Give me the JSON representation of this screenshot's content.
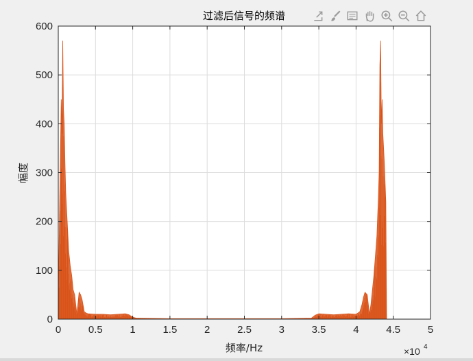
{
  "toolbar": {
    "items": [
      {
        "icon": "export-icon",
        "label": "Export"
      },
      {
        "icon": "brush-icon",
        "label": "Brush"
      },
      {
        "icon": "data-tips-icon",
        "label": "Data Tips"
      },
      {
        "icon": "pan-hand-icon",
        "label": "Pan"
      },
      {
        "icon": "zoom-in-icon",
        "label": "Zoom In"
      },
      {
        "icon": "zoom-out-icon",
        "label": "Zoom Out"
      },
      {
        "icon": "home-icon",
        "label": "Restore View"
      }
    ]
  },
  "chart_data": {
    "type": "line",
    "title": "过滤后信号的频谱",
    "xlabel": "频率/Hz",
    "ylabel": "幅度",
    "x_exponent_label": "×10",
    "x_exponent_power": "4",
    "xlim": [
      0,
      5
    ],
    "ylim": [
      0,
      600
    ],
    "xticks": [
      0,
      0.5,
      1,
      1.5,
      2,
      2.5,
      3,
      3.5,
      4,
      4.5,
      5
    ],
    "xtick_labels": [
      "0",
      "0.5",
      "1",
      "1.5",
      "2",
      "2.5",
      "3",
      "3.5",
      "4",
      "4.5",
      "5"
    ],
    "yticks": [
      0,
      100,
      200,
      300,
      400,
      500,
      600
    ],
    "ytick_labels": [
      "0",
      "100",
      "200",
      "300",
      "400",
      "500",
      "600"
    ],
    "grid": true,
    "series": [
      {
        "color": "#d95319",
        "x": [
          0.0,
          0.02,
          0.04,
          0.05,
          0.06,
          0.07,
          0.08,
          0.09,
          0.1,
          0.12,
          0.14,
          0.16,
          0.18,
          0.2,
          0.22,
          0.25,
          0.28,
          0.3,
          0.32,
          0.35,
          0.38,
          0.4,
          0.5,
          0.6,
          0.7,
          0.8,
          0.9,
          0.95,
          1.0,
          1.05,
          1.5,
          2.0,
          2.5,
          3.0,
          3.4,
          3.45,
          3.5,
          3.6,
          3.7,
          3.8,
          3.9,
          4.0,
          4.05,
          4.08,
          4.1,
          4.12,
          4.15,
          4.18,
          4.2,
          4.22,
          4.24,
          4.26,
          4.28,
          4.3,
          4.31,
          4.32,
          4.33,
          4.34,
          4.35,
          4.36,
          4.38,
          4.4,
          4.41
        ],
        "y": [
          30,
          250,
          450,
          380,
          570,
          430,
          400,
          320,
          260,
          200,
          140,
          110,
          90,
          60,
          50,
          10,
          55,
          50,
          40,
          15,
          12,
          11,
          10,
          10,
          9,
          10,
          11,
          9,
          4,
          2,
          1,
          1,
          1,
          1,
          2,
          8,
          11,
          10,
          9,
          10,
          11,
          10,
          15,
          30,
          45,
          55,
          50,
          10,
          30,
          60,
          90,
          130,
          170,
          250,
          300,
          520,
          570,
          400,
          450,
          380,
          320,
          240,
          0
        ]
      }
    ]
  }
}
